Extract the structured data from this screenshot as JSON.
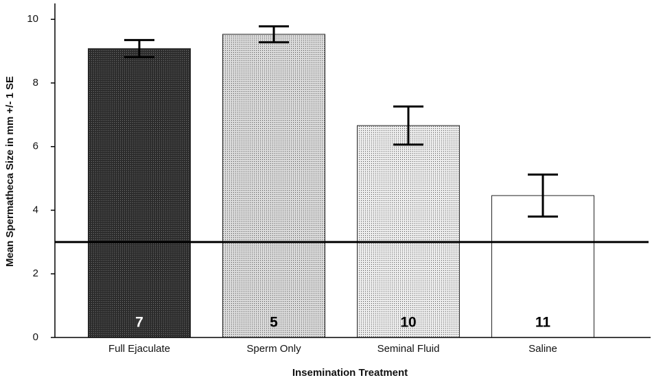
{
  "chart_data": {
    "type": "bar",
    "x_label": "Insemination Treatment",
    "y_label": "Mean Spermatheca Size in mm +/- 1 SE",
    "categories": [
      "Full Ejaculate",
      "Sperm Only",
      "Seminal Fluid",
      "Saline"
    ],
    "values": [
      9.08,
      9.53,
      6.66,
      4.46
    ],
    "errors": [
      0.27,
      0.25,
      0.6,
      0.66
    ],
    "sample_sizes": [
      "7",
      "5",
      "10",
      "11"
    ],
    "colors": [
      "#2b2b2b",
      "#dcdcdc",
      "#eeeeee",
      "#ffffff"
    ],
    "reference_line": 3,
    "ylim": [
      0,
      10.5
    ],
    "yticks": [
      0,
      2,
      4,
      6,
      8,
      10
    ],
    "grid": false
  }
}
